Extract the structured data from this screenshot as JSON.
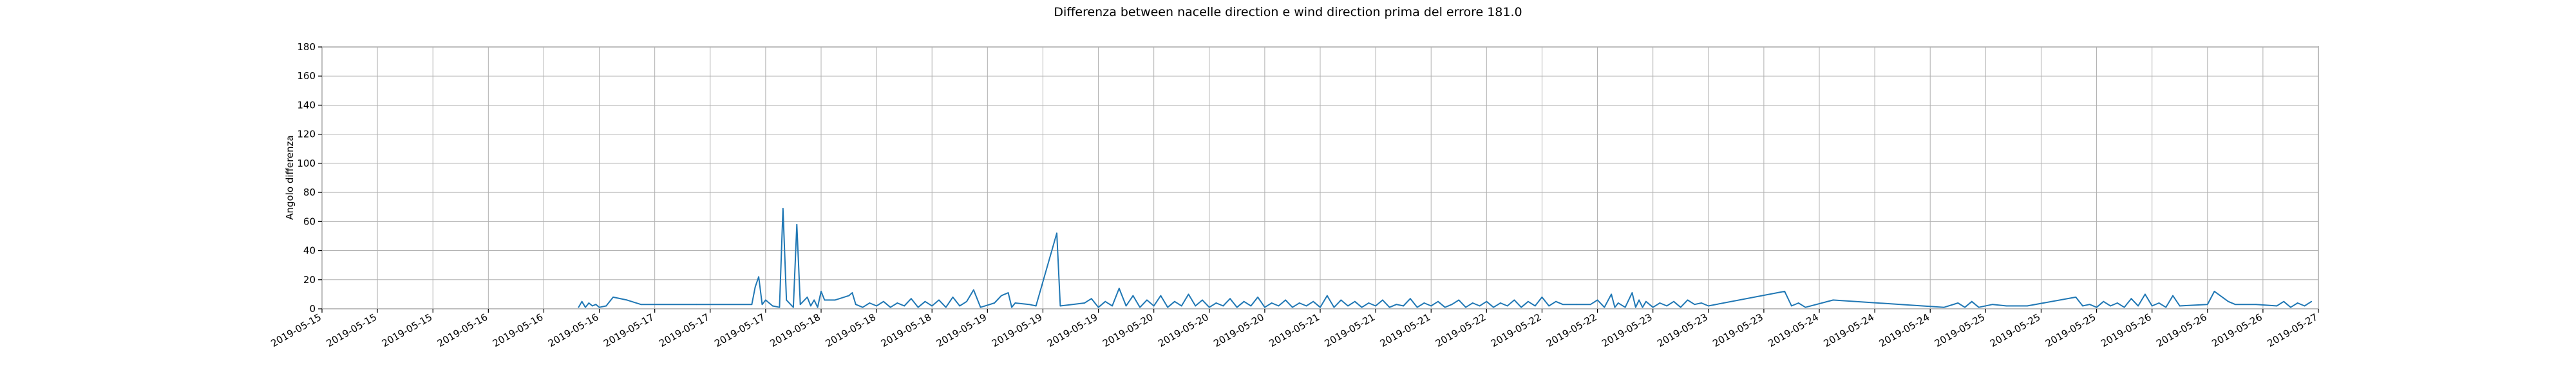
{
  "chart_data": {
    "type": "line",
    "title": "Differenza between nacelle direction e wind direction prima del errore 181.0",
    "xlabel": "",
    "ylabel": "Angolo differenza",
    "ylim": [
      0,
      180
    ],
    "yticks": [
      0,
      20,
      40,
      60,
      80,
      100,
      120,
      140,
      160,
      180
    ],
    "xlim": [
      "2019-05-15 00:00",
      "2019-05-27 00:00"
    ],
    "xtick_labels": [
      "2019-05-15",
      "2019-05-15",
      "2019-05-15",
      "2019-05-16",
      "2019-05-16",
      "2019-05-16",
      "2019-05-17",
      "2019-05-17",
      "2019-05-17",
      "2019-05-18",
      "2019-05-18",
      "2019-05-18",
      "2019-05-19",
      "2019-05-19",
      "2019-05-19",
      "2019-05-20",
      "2019-05-20",
      "2019-05-20",
      "2019-05-21",
      "2019-05-21",
      "2019-05-21",
      "2019-05-22",
      "2019-05-22",
      "2019-05-22",
      "2019-05-23",
      "2019-05-23",
      "2019-05-23",
      "2019-05-24",
      "2019-05-24",
      "2019-05-24",
      "2019-05-25",
      "2019-05-25",
      "2019-05-25",
      "2019-05-26",
      "2019-05-26",
      "2019-05-26",
      "2019-05-27"
    ],
    "grid": true,
    "color": "#1f77b4",
    "series": [
      {
        "name": "",
        "points": [
          [
            "2019-05-16 13:00",
            1
          ],
          [
            "2019-05-16 13:30",
            5
          ],
          [
            "2019-05-16 14:00",
            1
          ],
          [
            "2019-05-16 14:30",
            4
          ],
          [
            "2019-05-16 15:00",
            2
          ],
          [
            "2019-05-16 15:30",
            3
          ],
          [
            "2019-05-16 16:00",
            1
          ],
          [
            "2019-05-16 17:00",
            2
          ],
          [
            "2019-05-16 18:00",
            8
          ],
          [
            "2019-05-16 20:00",
            6
          ],
          [
            "2019-05-16 22:00",
            3
          ],
          [
            "2019-05-17 06:00",
            3
          ],
          [
            "2019-05-17 14:00",
            3
          ],
          [
            "2019-05-17 14:30",
            15
          ],
          [
            "2019-05-17 15:00",
            22
          ],
          [
            "2019-05-17 15:30",
            3
          ],
          [
            "2019-05-17 16:00",
            6
          ],
          [
            "2019-05-17 17:00",
            2
          ],
          [
            "2019-05-17 18:00",
            1
          ],
          [
            "2019-05-17 18:30",
            69
          ],
          [
            "2019-05-17 19:00",
            6
          ],
          [
            "2019-05-17 20:00",
            1
          ],
          [
            "2019-05-17 20:30",
            58
          ],
          [
            "2019-05-17 21:00",
            3
          ],
          [
            "2019-05-17 22:00",
            8
          ],
          [
            "2019-05-17 22:30",
            2
          ],
          [
            "2019-05-17 23:00",
            6
          ],
          [
            "2019-05-17 23:30",
            1
          ],
          [
            "2019-05-18 00:00",
            12
          ],
          [
            "2019-05-18 00:30",
            6
          ],
          [
            "2019-05-18 02:00",
            6
          ],
          [
            "2019-05-18 04:00",
            9
          ],
          [
            "2019-05-18 04:30",
            11
          ],
          [
            "2019-05-18 05:00",
            3
          ],
          [
            "2019-05-18 06:00",
            1
          ],
          [
            "2019-05-18 07:00",
            4
          ],
          [
            "2019-05-18 08:00",
            2
          ],
          [
            "2019-05-18 09:00",
            5
          ],
          [
            "2019-05-18 10:00",
            1
          ],
          [
            "2019-05-18 11:00",
            4
          ],
          [
            "2019-05-18 12:00",
            2
          ],
          [
            "2019-05-18 13:00",
            7
          ],
          [
            "2019-05-18 14:00",
            1
          ],
          [
            "2019-05-18 15:00",
            5
          ],
          [
            "2019-05-18 16:00",
            2
          ],
          [
            "2019-05-18 17:00",
            6
          ],
          [
            "2019-05-18 18:00",
            1
          ],
          [
            "2019-05-18 19:00",
            8
          ],
          [
            "2019-05-18 20:00",
            2
          ],
          [
            "2019-05-18 21:00",
            5
          ],
          [
            "2019-05-18 22:00",
            13
          ],
          [
            "2019-05-18 23:00",
            1
          ],
          [
            "2019-05-19 01:00",
            4
          ],
          [
            "2019-05-19 02:00",
            9
          ],
          [
            "2019-05-19 03:00",
            11
          ],
          [
            "2019-05-19 03:30",
            1
          ],
          [
            "2019-05-19 04:00",
            4
          ],
          [
            "2019-05-19 06:00",
            3
          ],
          [
            "2019-05-19 07:00",
            2
          ],
          [
            "2019-05-19 10:00",
            52
          ],
          [
            "2019-05-19 10:30",
            2
          ],
          [
            "2019-05-19 14:00",
            4
          ],
          [
            "2019-05-19 15:00",
            7
          ],
          [
            "2019-05-19 16:00",
            1
          ],
          [
            "2019-05-19 17:00",
            5
          ],
          [
            "2019-05-19 18:00",
            2
          ],
          [
            "2019-05-19 19:00",
            14
          ],
          [
            "2019-05-19 20:00",
            2
          ],
          [
            "2019-05-19 21:00",
            9
          ],
          [
            "2019-05-19 22:00",
            1
          ],
          [
            "2019-05-19 23:00",
            6
          ],
          [
            "2019-05-20 00:00",
            2
          ],
          [
            "2019-05-20 01:00",
            9
          ],
          [
            "2019-05-20 02:00",
            1
          ],
          [
            "2019-05-20 03:00",
            5
          ],
          [
            "2019-05-20 04:00",
            2
          ],
          [
            "2019-05-20 05:00",
            10
          ],
          [
            "2019-05-20 06:00",
            2
          ],
          [
            "2019-05-20 07:00",
            6
          ],
          [
            "2019-05-20 08:00",
            1
          ],
          [
            "2019-05-20 09:00",
            4
          ],
          [
            "2019-05-20 10:00",
            2
          ],
          [
            "2019-05-20 11:00",
            7
          ],
          [
            "2019-05-20 12:00",
            1
          ],
          [
            "2019-05-20 13:00",
            5
          ],
          [
            "2019-05-20 14:00",
            2
          ],
          [
            "2019-05-20 15:00",
            8
          ],
          [
            "2019-05-20 16:00",
            1
          ],
          [
            "2019-05-20 17:00",
            4
          ],
          [
            "2019-05-20 18:00",
            2
          ],
          [
            "2019-05-20 19:00",
            6
          ],
          [
            "2019-05-20 20:00",
            1
          ],
          [
            "2019-05-20 21:00",
            4
          ],
          [
            "2019-05-20 22:00",
            2
          ],
          [
            "2019-05-20 23:00",
            5
          ],
          [
            "2019-05-21 00:00",
            1
          ],
          [
            "2019-05-21 01:00",
            9
          ],
          [
            "2019-05-21 02:00",
            1
          ],
          [
            "2019-05-21 03:00",
            6
          ],
          [
            "2019-05-21 04:00",
            2
          ],
          [
            "2019-05-21 05:00",
            5
          ],
          [
            "2019-05-21 06:00",
            1
          ],
          [
            "2019-05-21 07:00",
            4
          ],
          [
            "2019-05-21 08:00",
            2
          ],
          [
            "2019-05-21 09:00",
            6
          ],
          [
            "2019-05-21 10:00",
            1
          ],
          [
            "2019-05-21 11:00",
            3
          ],
          [
            "2019-05-21 12:00",
            2
          ],
          [
            "2019-05-21 13:00",
            7
          ],
          [
            "2019-05-21 14:00",
            1
          ],
          [
            "2019-05-21 15:00",
            4
          ],
          [
            "2019-05-21 16:00",
            2
          ],
          [
            "2019-05-21 17:00",
            5
          ],
          [
            "2019-05-21 18:00",
            1
          ],
          [
            "2019-05-21 19:00",
            3
          ],
          [
            "2019-05-21 20:00",
            6
          ],
          [
            "2019-05-21 21:00",
            1
          ],
          [
            "2019-05-21 22:00",
            4
          ],
          [
            "2019-05-21 23:00",
            2
          ],
          [
            "2019-05-22 00:00",
            5
          ],
          [
            "2019-05-22 01:00",
            1
          ],
          [
            "2019-05-22 02:00",
            4
          ],
          [
            "2019-05-22 03:00",
            2
          ],
          [
            "2019-05-22 04:00",
            6
          ],
          [
            "2019-05-22 05:00",
            1
          ],
          [
            "2019-05-22 06:00",
            5
          ],
          [
            "2019-05-22 07:00",
            2
          ],
          [
            "2019-05-22 08:00",
            8
          ],
          [
            "2019-05-22 09:00",
            2
          ],
          [
            "2019-05-22 10:00",
            5
          ],
          [
            "2019-05-22 11:00",
            3
          ],
          [
            "2019-05-22 13:00",
            3
          ],
          [
            "2019-05-22 15:00",
            3
          ],
          [
            "2019-05-22 16:00",
            6
          ],
          [
            "2019-05-22 17:00",
            1
          ],
          [
            "2019-05-22 18:00",
            10
          ],
          [
            "2019-05-22 18:30",
            1
          ],
          [
            "2019-05-22 19:00",
            4
          ],
          [
            "2019-05-22 20:00",
            1
          ],
          [
            "2019-05-22 21:00",
            11
          ],
          [
            "2019-05-22 21:30",
            1
          ],
          [
            "2019-05-22 22:00",
            6
          ],
          [
            "2019-05-22 22:30",
            1
          ],
          [
            "2019-05-22 23:00",
            5
          ],
          [
            "2019-05-23 00:00",
            1
          ],
          [
            "2019-05-23 01:00",
            4
          ],
          [
            "2019-05-23 02:00",
            2
          ],
          [
            "2019-05-23 03:00",
            5
          ],
          [
            "2019-05-23 04:00",
            1
          ],
          [
            "2019-05-23 05:00",
            6
          ],
          [
            "2019-05-23 06:00",
            3
          ],
          [
            "2019-05-23 07:00",
            4
          ],
          [
            "2019-05-23 08:00",
            2
          ],
          [
            "2019-05-23 19:00",
            12
          ],
          [
            "2019-05-23 20:00",
            2
          ],
          [
            "2019-05-23 21:00",
            4
          ],
          [
            "2019-05-23 22:00",
            1
          ],
          [
            "2019-05-24 02:00",
            6
          ],
          [
            "2019-05-24 18:00",
            1
          ],
          [
            "2019-05-24 20:00",
            4
          ],
          [
            "2019-05-24 21:00",
            1
          ],
          [
            "2019-05-24 22:00",
            5
          ],
          [
            "2019-05-24 23:00",
            1
          ],
          [
            "2019-05-25 01:00",
            3
          ],
          [
            "2019-05-25 03:00",
            2
          ],
          [
            "2019-05-25 06:00",
            2
          ],
          [
            "2019-05-25 13:00",
            8
          ],
          [
            "2019-05-25 14:00",
            2
          ],
          [
            "2019-05-25 15:00",
            3
          ],
          [
            "2019-05-25 16:00",
            1
          ],
          [
            "2019-05-25 17:00",
            5
          ],
          [
            "2019-05-25 18:00",
            2
          ],
          [
            "2019-05-25 19:00",
            4
          ],
          [
            "2019-05-25 20:00",
            1
          ],
          [
            "2019-05-25 21:00",
            7
          ],
          [
            "2019-05-25 22:00",
            2
          ],
          [
            "2019-05-25 23:00",
            10
          ],
          [
            "2019-05-26 00:00",
            2
          ],
          [
            "2019-05-26 01:00",
            4
          ],
          [
            "2019-05-26 02:00",
            1
          ],
          [
            "2019-05-26 03:00",
            9
          ],
          [
            "2019-05-26 04:00",
            2
          ],
          [
            "2019-05-26 08:00",
            3
          ],
          [
            "2019-05-26 09:00",
            12
          ],
          [
            "2019-05-26 11:00",
            5
          ],
          [
            "2019-05-26 12:00",
            3
          ],
          [
            "2019-05-26 15:00",
            3
          ],
          [
            "2019-05-26 18:00",
            2
          ],
          [
            "2019-05-26 19:00",
            5
          ],
          [
            "2019-05-26 20:00",
            1
          ],
          [
            "2019-05-26 21:00",
            4
          ],
          [
            "2019-05-26 22:00",
            2
          ],
          [
            "2019-05-26 23:00",
            5
          ]
        ]
      }
    ]
  }
}
